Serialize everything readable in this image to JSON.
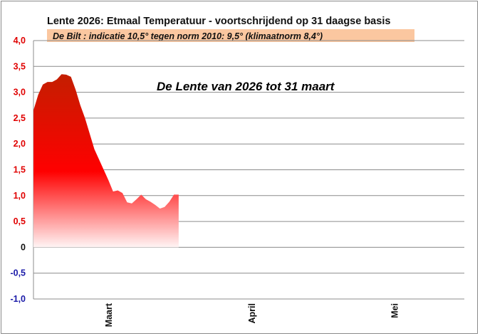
{
  "chart_data": {
    "type": "area",
    "title": "Lente 2026:  Etmaal Temperatuur - voortschrijdend op 31 daagse basis",
    "subtitle": "De Bilt : indicatie 10,5° tegen norm 2010: 9,5°  (klimaatnorm 8,4°)",
    "annotation": "De Lente van 2026 tot 31 maart",
    "ylim": [
      -1.0,
      4.0
    ],
    "yticks": [
      4.0,
      3.5,
      3.0,
      2.5,
      2.0,
      1.5,
      1.0,
      0.5,
      0,
      -0.5,
      -1.0
    ],
    "ytick_labels": [
      "4,0",
      "3,5",
      "3,0",
      "2,5",
      "2,0",
      "1,5",
      "1,0",
      "0,5",
      "0",
      "-0,5",
      "-1,0"
    ],
    "xlim": [
      0,
      92
    ],
    "xtick_labels": [
      {
        "label": "Maart",
        "day": 16
      },
      {
        "label": "April",
        "day": 46.5
      },
      {
        "label": "Mei",
        "day": 77
      }
    ],
    "x": [
      0,
      1,
      2,
      3,
      4,
      5,
      6,
      7,
      8,
      9,
      10,
      11,
      12,
      13,
      14,
      15,
      16,
      17,
      18,
      19,
      20,
      21,
      22,
      23,
      24,
      25,
      26,
      27,
      28,
      29,
      30,
      31
    ],
    "values": [
      2.65,
      2.95,
      3.15,
      3.2,
      3.2,
      3.25,
      3.35,
      3.34,
      3.3,
      3.05,
      2.75,
      2.5,
      2.2,
      1.9,
      1.7,
      1.5,
      1.3,
      1.08,
      1.1,
      1.05,
      0.87,
      0.85,
      0.93,
      1.02,
      0.93,
      0.88,
      0.82,
      0.75,
      0.78,
      0.88,
      1.02,
      1.02
    ],
    "grid": true,
    "colors": {
      "fill_top": "#c41e00",
      "fill_mid": "#ff0000",
      "fill_bottom": "#ffffff",
      "ytick_positive": "#e00000",
      "ytick_negative": "#1a1aa8",
      "subtitle_bg": "#fbc7a0",
      "gridline": "#8c8c8c"
    }
  }
}
